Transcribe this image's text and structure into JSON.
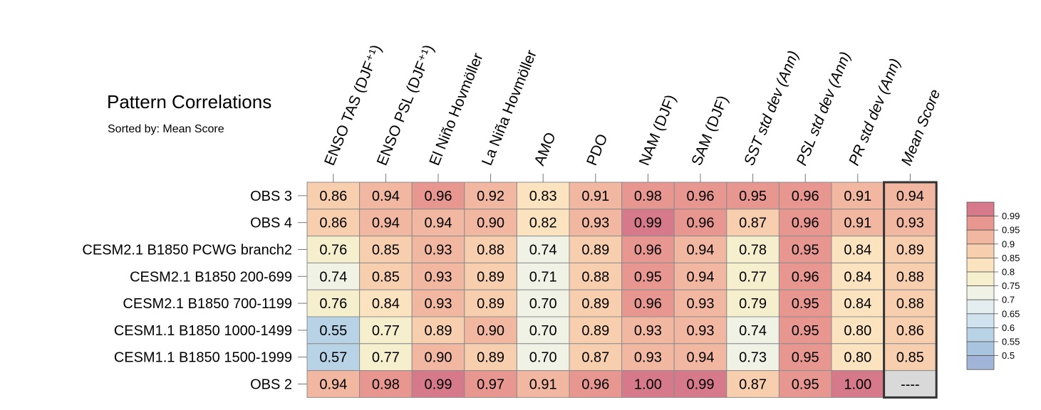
{
  "chart_data": {
    "type": "heatmap",
    "title": "Pattern Correlations",
    "subtitle": "Sorted by: Mean Score",
    "columns": [
      "ENSO TAS (DJF⁺¹)",
      "ENSO PSL (DJF⁺¹)",
      "El Niño Hovmöller",
      "La Niña Hovmöller",
      "AMO",
      "PDO",
      "NAM (DJF)",
      "SAM (DJF)",
      "SST std dev (Ann)",
      "PSL std dev (Ann)",
      "PR std dev (Ann)",
      "Mean Score"
    ],
    "rows": [
      "OBS 3",
      "OBS 4",
      "CESM2.1 B1850 PCWG branch2",
      "CESM2.1 B1850 200-699",
      "CESM2.1 B1850 700-1199",
      "CESM1.1 B1850 1000-1499",
      "CESM1.1 B1850 1500-1999",
      "OBS 2"
    ],
    "values": [
      [
        "0.86",
        "0.94",
        "0.96",
        "0.92",
        "0.83",
        "0.91",
        "0.98",
        "0.96",
        "0.95",
        "0.96",
        "0.91",
        "0.94"
      ],
      [
        "0.86",
        "0.94",
        "0.94",
        "0.90",
        "0.82",
        "0.93",
        "0.99",
        "0.96",
        "0.87",
        "0.96",
        "0.91",
        "0.93"
      ],
      [
        "0.76",
        "0.85",
        "0.93",
        "0.88",
        "0.74",
        "0.89",
        "0.96",
        "0.94",
        "0.78",
        "0.95",
        "0.84",
        "0.89"
      ],
      [
        "0.74",
        "0.85",
        "0.93",
        "0.89",
        "0.71",
        "0.88",
        "0.95",
        "0.94",
        "0.77",
        "0.96",
        "0.84",
        "0.88"
      ],
      [
        "0.76",
        "0.84",
        "0.93",
        "0.89",
        "0.70",
        "0.89",
        "0.96",
        "0.93",
        "0.79",
        "0.95",
        "0.84",
        "0.88"
      ],
      [
        "0.55",
        "0.77",
        "0.89",
        "0.90",
        "0.70",
        "0.89",
        "0.93",
        "0.93",
        "0.74",
        "0.95",
        "0.80",
        "0.86"
      ],
      [
        "0.57",
        "0.77",
        "0.90",
        "0.89",
        "0.70",
        "0.87",
        "0.93",
        "0.94",
        "0.73",
        "0.95",
        "0.80",
        "0.85"
      ],
      [
        "0.94",
        "0.98",
        "0.99",
        "0.97",
        "0.91",
        "0.96",
        "1.00",
        "0.99",
        "0.87",
        "0.95",
        "1.00",
        "----"
      ]
    ],
    "colorbar": {
      "levels": [
        "0.99",
        "0.95",
        "0.9",
        "0.85",
        "0.8",
        "0.75",
        "0.7",
        "0.65",
        "0.6",
        "0.55",
        "0.5"
      ],
      "colors_top_to_bottom": [
        "#d6798a",
        "#e79690",
        "#f2b7a0",
        "#f8cfae",
        "#fce3bf",
        "#f6efce",
        "#f1f2e6",
        "#e4eef1",
        "#cfe2ee",
        "#b9d3e6",
        "#a8c4df",
        "#9fb4d6"
      ]
    },
    "missing_color": "#d9d9d9"
  }
}
